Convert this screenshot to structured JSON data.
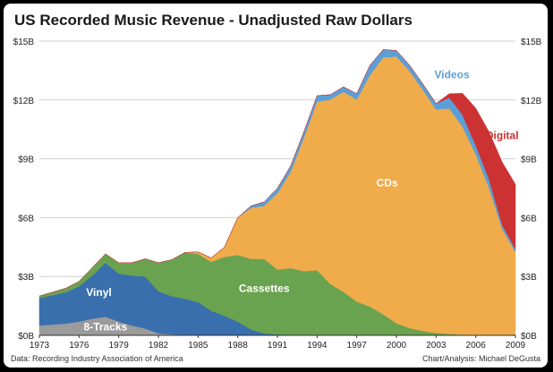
{
  "chart_data": {
    "type": "area",
    "title": "US Recorded Music Revenue - Unadjusted Raw Dollars",
    "xlabel": "",
    "ylabel": "",
    "ylim": [
      0,
      15
    ],
    "y_ticks": [
      "$0B",
      "$3B",
      "$6B",
      "$9B",
      "$12B",
      "$15B"
    ],
    "x_ticks": [
      "1973",
      "1976",
      "1979",
      "1982",
      "1985",
      "1988",
      "1991",
      "1994",
      "1997",
      "2000",
      "2003",
      "2006",
      "2009"
    ],
    "x": [
      1973,
      1974,
      1975,
      1976,
      1977,
      1978,
      1979,
      1980,
      1981,
      1982,
      1983,
      1984,
      1985,
      1986,
      1987,
      1988,
      1989,
      1990,
      1991,
      1992,
      1993,
      1994,
      1995,
      1996,
      1997,
      1998,
      1999,
      2000,
      2001,
      2002,
      2003,
      2004,
      2005,
      2006,
      2007,
      2008,
      2009
    ],
    "stack_order": [
      "8-Tracks",
      "Vinyl",
      "Cassettes",
      "CDs",
      "Videos",
      "Digital"
    ],
    "series": [
      {
        "name": "8-Tracks",
        "color": "#9b9b9b",
        "values": [
          0.5,
          0.55,
          0.6,
          0.7,
          0.85,
          0.95,
          0.7,
          0.5,
          0.35,
          0.1,
          0.05,
          0.02,
          0,
          0,
          0,
          0,
          0,
          0,
          0,
          0,
          0,
          0,
          0,
          0,
          0,
          0,
          0,
          0,
          0,
          0,
          0,
          0,
          0,
          0,
          0,
          0,
          0
        ]
      },
      {
        "name": "Vinyl",
        "color": "#3a6fad",
        "values": [
          1.4,
          1.5,
          1.6,
          1.8,
          2.2,
          2.75,
          2.45,
          2.55,
          2.65,
          2.15,
          1.95,
          1.85,
          1.7,
          1.25,
          1.0,
          0.7,
          0.3,
          0.1,
          0.05,
          0.03,
          0.02,
          0.02,
          0.02,
          0.02,
          0.02,
          0.02,
          0.02,
          0.02,
          0.02,
          0.02,
          0.02,
          0.02,
          0.02,
          0.02,
          0.02,
          0.03,
          0.05
        ]
      },
      {
        "name": "Cassettes",
        "color": "#6aa34f",
        "values": [
          0.1,
          0.15,
          0.2,
          0.25,
          0.4,
          0.45,
          0.55,
          0.65,
          0.9,
          1.45,
          1.85,
          2.35,
          2.45,
          2.5,
          3.0,
          3.4,
          3.6,
          3.8,
          3.3,
          3.4,
          3.25,
          3.3,
          2.6,
          2.2,
          1.7,
          1.45,
          1.05,
          0.6,
          0.35,
          0.2,
          0.1,
          0.05,
          0.02,
          0.01,
          0.01,
          0,
          0
        ]
      },
      {
        "name": "CDs",
        "color": "#f0ab4b",
        "values": [
          0,
          0,
          0,
          0,
          0,
          0,
          0,
          0,
          0,
          0,
          0,
          0,
          0.1,
          0.2,
          0.5,
          1.9,
          2.6,
          2.7,
          3.9,
          4.9,
          6.8,
          8.6,
          9.4,
          10.2,
          10.3,
          11.8,
          13.1,
          13.6,
          13.1,
          12.3,
          11.4,
          11.5,
          10.6,
          9.2,
          7.5,
          5.4,
          4.2
        ]
      },
      {
        "name": "Videos",
        "color": "#5b9fd6",
        "values": [
          0,
          0,
          0,
          0,
          0,
          0,
          0,
          0,
          0,
          0,
          0,
          0,
          0,
          0,
          0,
          0,
          0.1,
          0.2,
          0.25,
          0.3,
          0.3,
          0.3,
          0.25,
          0.25,
          0.3,
          0.5,
          0.4,
          0.3,
          0.3,
          0.3,
          0.3,
          0.55,
          0.6,
          0.45,
          0.45,
          0.2,
          0.15
        ]
      },
      {
        "name": "Digital",
        "color": "#cc3232",
        "values": [
          0,
          0,
          0,
          0,
          0,
          0,
          0,
          0,
          0,
          0,
          0,
          0,
          0,
          0,
          0,
          0,
          0,
          0,
          0,
          0,
          0,
          0,
          0,
          0,
          0,
          0,
          0,
          0,
          0,
          0,
          0,
          0.2,
          1.1,
          1.9,
          2.4,
          3.2,
          3.3
        ]
      }
    ],
    "labels": {
      "vinyl": "Vinyl",
      "eight_tracks": "8-Tracks",
      "cassettes": "Cassettes",
      "cds": "CDs",
      "videos": "Videos",
      "digital": "Digital"
    },
    "grid": true
  },
  "footer": {
    "source": "Data: Recording Industry Association of America",
    "credit": "Chart/Analysis: Michael DeGusta"
  }
}
